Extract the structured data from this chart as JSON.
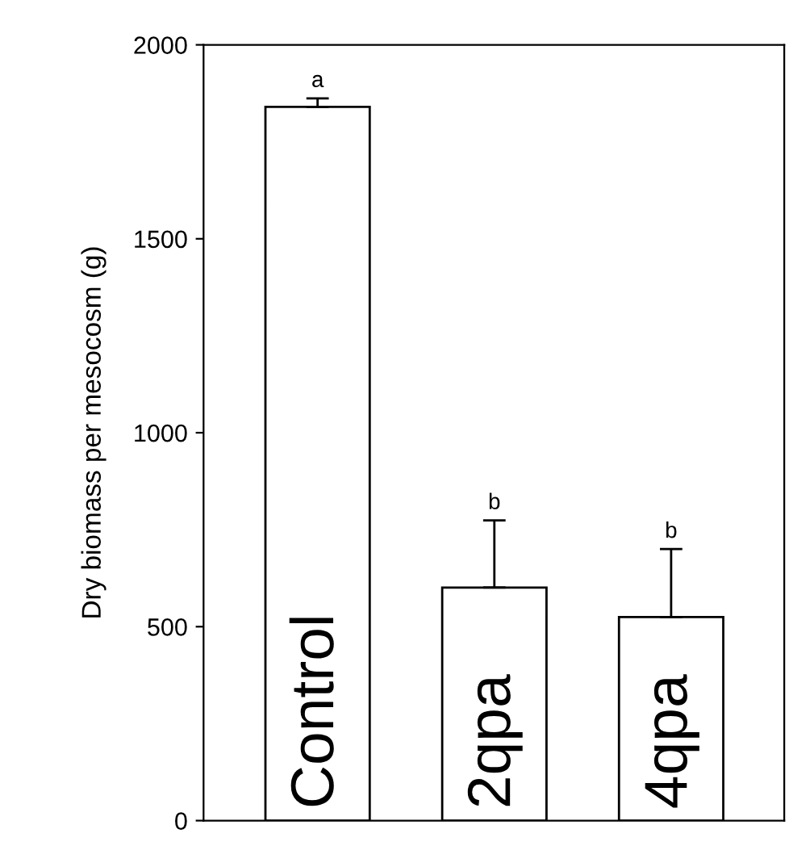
{
  "chart_data": {
    "type": "bar",
    "ylabel": "Dry biomass per mesocosm (g)",
    "categories": [
      "Control",
      "2qpa",
      "4qpa"
    ],
    "values": [
      1840,
      601,
      525
    ],
    "errors": [
      [
        1840,
        1862
      ],
      [
        601,
        774
      ],
      [
        525,
        700
      ]
    ],
    "color": "#ffffff",
    "ylim": [
      0,
      2000
    ],
    "yticks": [
      0,
      500,
      1000,
      1500,
      2000
    ],
    "tick_labels": "y",
    "grid": false,
    "annotations": [
      "a",
      "b",
      "b"
    ]
  }
}
